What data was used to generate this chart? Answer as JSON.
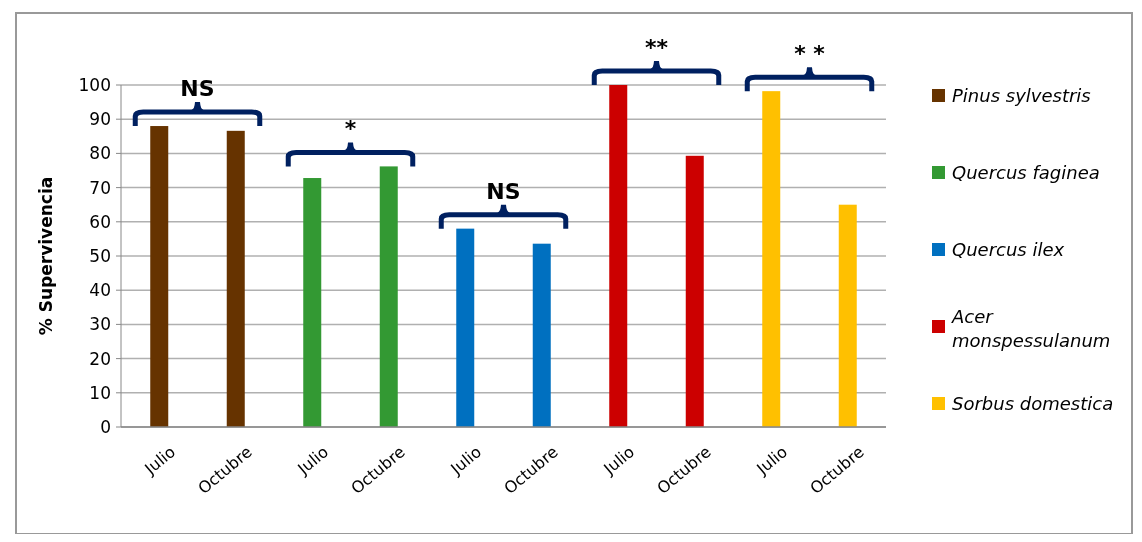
{
  "chart_data": {
    "type": "bar",
    "ylabel": "% Supervivencia",
    "categories": [
      "Julio",
      "Octubre",
      "Julio",
      "Octubre",
      "Julio",
      "Octubre",
      "Julio",
      "Octubre",
      "Julio",
      "Octubre"
    ],
    "series": [
      {
        "name": "Pinus sylvestris",
        "color": "#663300",
        "values": [
          88,
          86.6,
          null,
          null,
          null,
          null,
          null,
          null,
          null,
          null
        ]
      },
      {
        "name": "Quercus faginea",
        "color": "#339933",
        "values": [
          null,
          null,
          72.8,
          76.2,
          null,
          null,
          null,
          null,
          null,
          null
        ]
      },
      {
        "name": "Quercus ilex",
        "color": "#0070c0",
        "values": [
          null,
          null,
          null,
          null,
          58,
          53.6,
          null,
          null,
          null,
          null
        ]
      },
      {
        "name": "Acer monspessulanum",
        "color": "#cc0000",
        "values": [
          null,
          null,
          null,
          null,
          null,
          null,
          100,
          79.3,
          null,
          null
        ]
      },
      {
        "name": "Sorbus domestica",
        "color": "#ffc000",
        "values": [
          null,
          null,
          null,
          null,
          null,
          null,
          null,
          null,
          98.2,
          65
        ]
      }
    ],
    "ylim": [
      0,
      100
    ],
    "yticks": [
      0,
      10,
      20,
      30,
      40,
      50,
      60,
      70,
      80,
      90,
      100
    ],
    "grid": "y",
    "legend": "right",
    "annotations": [
      "NS",
      "*",
      "NS",
      "**",
      "* *"
    ]
  }
}
